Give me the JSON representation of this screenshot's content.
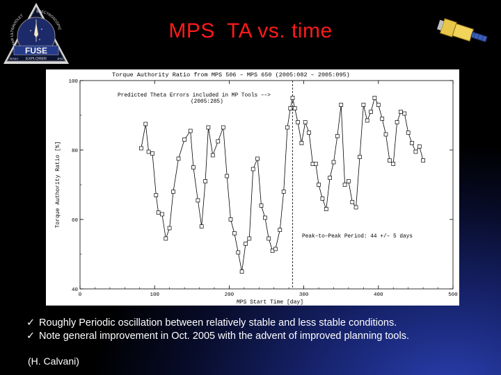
{
  "title": "MPS  TA vs. time",
  "logo": {
    "ring_text_left": "FAR ULTRAVIOLET",
    "ring_text_right": "SPECTROSCOPIC",
    "name": "FUSE",
    "explorer": "EXPLORER",
    "nasa": "NASA",
    "jhu": "JHU"
  },
  "bullets": [
    {
      "check": "✓",
      "text": "Roughly Periodic oscillation between relatively stable and less stable conditions."
    },
    {
      "check": "✓",
      "text": "Note general improvement in Oct. 2005 with the advent of improved planning tools."
    }
  ],
  "credit": "(H. Calvani)",
  "chart_data": {
    "type": "line",
    "title": "Torque Authority Ratio from MPS 506 – MPS 650 (2005:082 – 2005:095)",
    "xlabel": "MPS Start Time [day]",
    "ylabel": "Torque Authority Ratio [%]",
    "xlim": [
      0,
      500
    ],
    "ylim": [
      40,
      100
    ],
    "xticks": [
      "0",
      "100",
      "200",
      "300",
      "400",
      "500"
    ],
    "yticks": [
      "40",
      "60",
      "80",
      "100"
    ],
    "annotations": {
      "predicted": "Predicted Theta Errors included in MP Tools ––>",
      "predicted_date": "(2005:285)",
      "period": "Peak–to–Peak Period: 44 +/– 5 days"
    },
    "divider_x": 285,
    "series": [
      {
        "x": [
          82,
          88,
          92,
          97,
          102,
          105,
          110,
          115,
          120,
          125,
          132,
          140,
          148,
          152,
          158,
          163,
          168,
          172,
          178,
          185,
          192,
          197,
          202,
          207,
          212,
          217,
          222,
          227,
          232,
          238,
          243,
          248,
          253,
          258,
          262,
          268,
          273,
          278,
          282,
          285,
          288,
          292,
          297,
          302,
          307,
          312,
          316,
          320,
          325,
          330,
          335,
          340,
          345,
          350,
          355,
          360,
          365,
          370,
          375,
          380,
          385,
          390,
          395,
          400,
          405,
          410,
          415,
          420,
          425,
          430,
          435,
          440,
          445,
          450,
          455,
          460
        ],
        "y": [
          80.5,
          87.5,
          79.5,
          79,
          67,
          62,
          61.5,
          54.5,
          57.5,
          68,
          77.5,
          83,
          85.5,
          75,
          65.5,
          58,
          71,
          86.5,
          78.5,
          82.5,
          86.5,
          72.5,
          60,
          56,
          50.5,
          45,
          53,
          54.5,
          74.5,
          77.5,
          64,
          60.5,
          54.5,
          51,
          51.5,
          57,
          68,
          86.5,
          92,
          95,
          92,
          88,
          82,
          88,
          85,
          76,
          76,
          70,
          66,
          63,
          72,
          76.5,
          84,
          93,
          70,
          71,
          65,
          63.5,
          78,
          93,
          88.5,
          91,
          95,
          93,
          89,
          84.5,
          77,
          76,
          88,
          91,
          90.5,
          85,
          82,
          79.5,
          81,
          77
        ]
      }
    ]
  }
}
